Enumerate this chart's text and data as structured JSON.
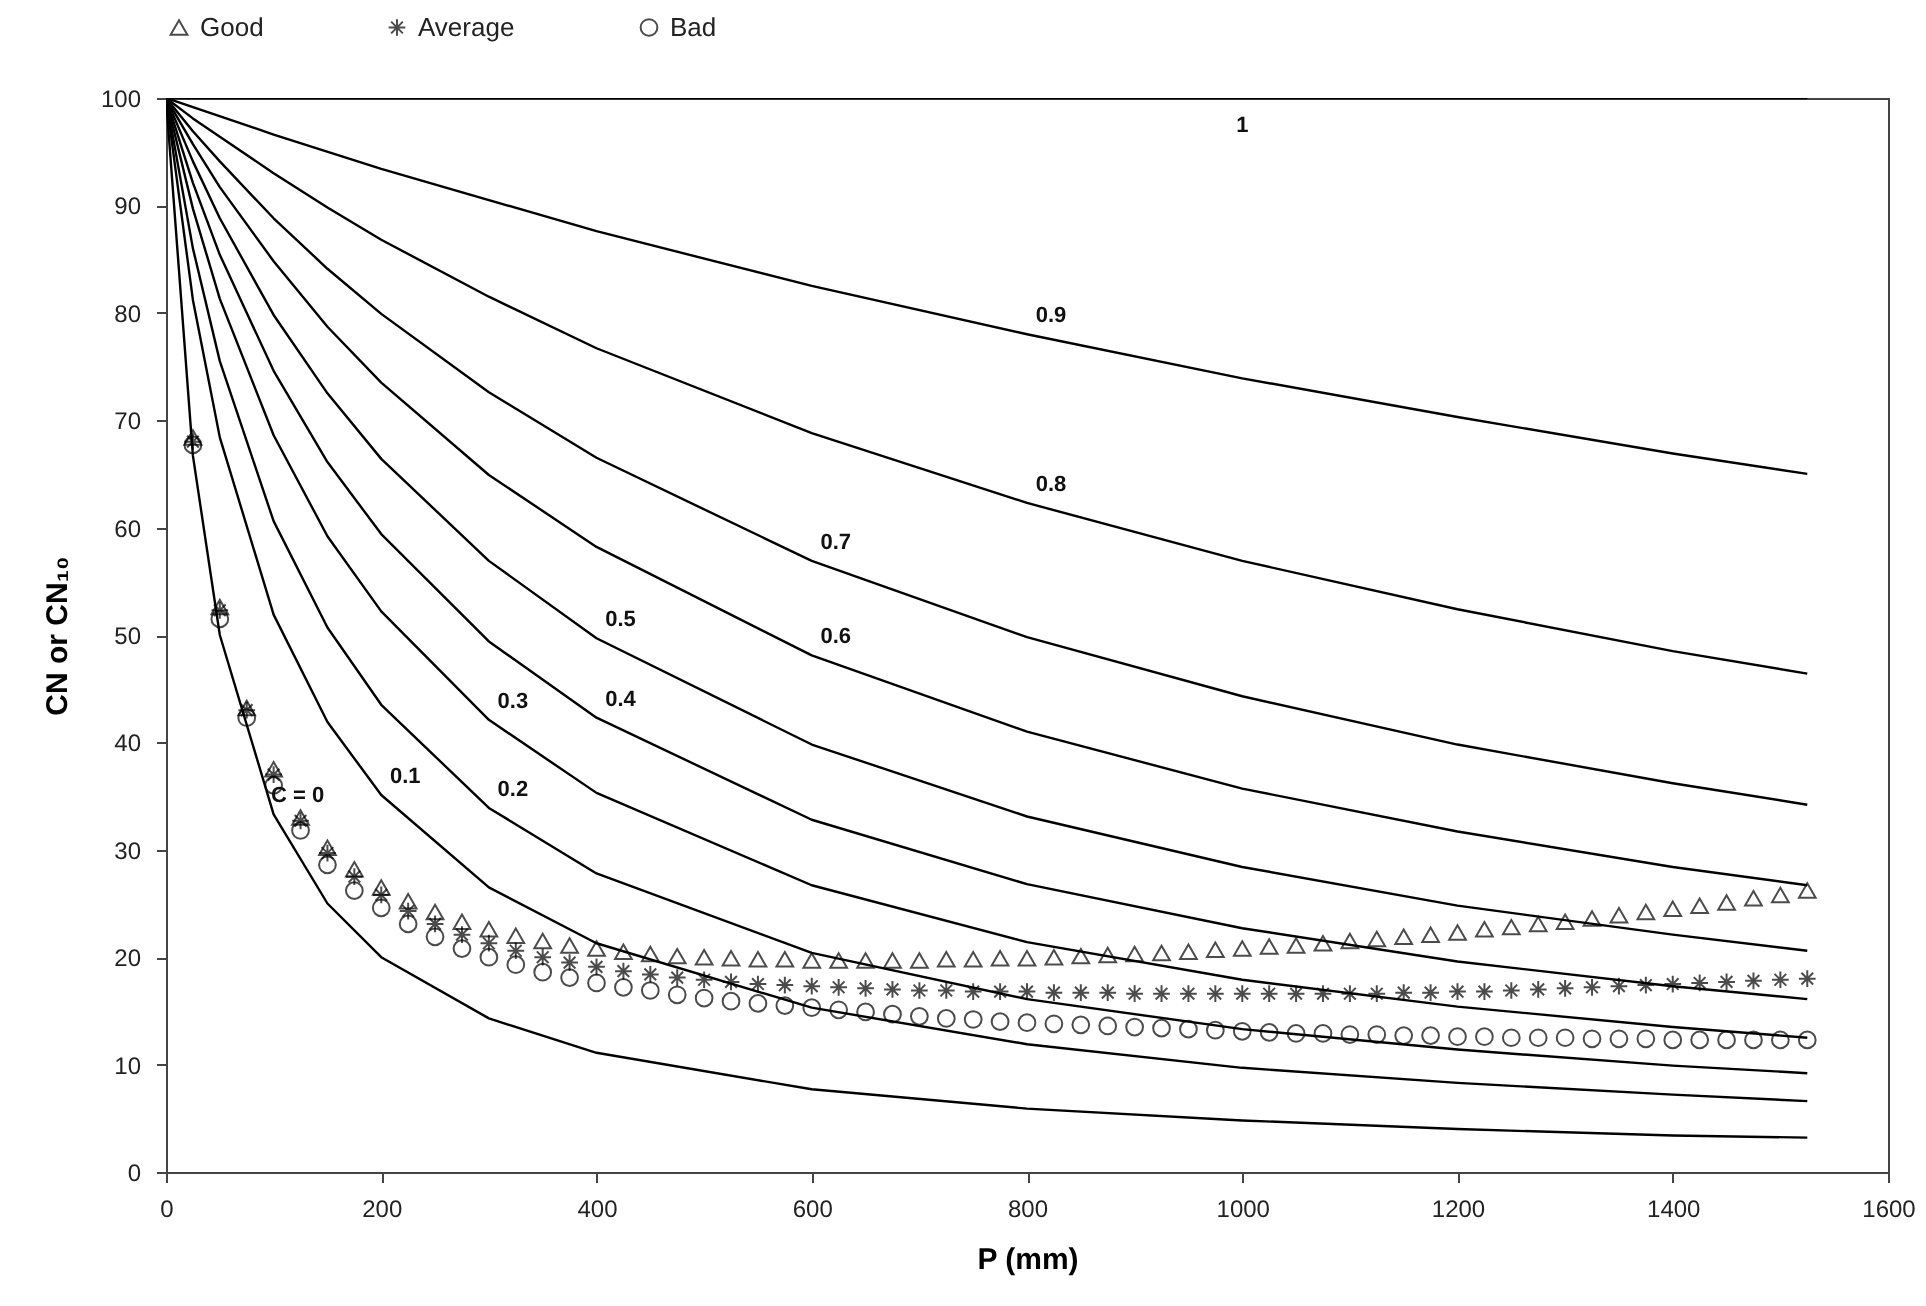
{
  "chart_data": {
    "type": "line",
    "xlabel": "P (mm)",
    "ylabel": "CN or CN₁₀",
    "xlim": [
      0,
      1600
    ],
    "xticks": [
      0,
      200,
      400,
      600,
      800,
      1000,
      1200,
      1400,
      1600
    ],
    "ylim": [
      0,
      100
    ],
    "yticks": [
      0,
      10,
      20,
      30,
      40,
      50,
      60,
      70,
      80,
      90,
      100
    ],
    "grid": false,
    "legend": "top",
    "series": [
      {
        "color": "#000000",
        "marker": "none",
        "x": [
          0,
          25,
          50,
          100,
          150,
          200,
          300,
          400,
          600,
          800,
          1000,
          1200,
          1400,
          1525
        ],
        "values": [
          100,
          66.7,
          50,
          33.3,
          25,
          20,
          14.3,
          11.1,
          7.7,
          5.9,
          4.8,
          4.0,
          3.4,
          3.2
        ]
      },
      {
        "type": "line",
        "color": "#000000",
        "marker": "none",
        "x": [
          0,
          25,
          50,
          100,
          150,
          200,
          300,
          400,
          600,
          800,
          1000,
          1200,
          1400,
          1525
        ],
        "values": [
          100,
          81.2,
          68.4,
          51.9,
          41.9,
          35.1,
          26.5,
          21.3,
          15.3,
          11.9,
          9.7,
          8.3,
          7.2,
          6.6
        ]
      },
      {
        "type": "line",
        "color": "#000000",
        "marker": "none",
        "x": [
          0,
          25,
          50,
          100,
          150,
          200,
          300,
          400,
          600,
          800,
          1000,
          1200,
          1400,
          1525
        ],
        "values": [
          100,
          86.0,
          75.5,
          60.6,
          50.7,
          43.5,
          33.9,
          27.8,
          20.4,
          16.1,
          13.3,
          11.4,
          9.9,
          9.2
        ]
      },
      {
        "type": "line",
        "color": "#000000",
        "marker": "none",
        "x": [
          0,
          25,
          50,
          100,
          150,
          200,
          300,
          400,
          600,
          800,
          1000,
          1200,
          1400,
          1525
        ],
        "values": [
          100,
          89.7,
          81.3,
          68.6,
          59.2,
          52.2,
          42.1,
          35.3,
          26.7,
          21.4,
          17.9,
          15.4,
          13.5,
          12.5
        ]
      },
      {
        "type": "line",
        "color": "#000000",
        "marker": "none",
        "x": [
          0,
          25,
          50,
          100,
          150,
          200,
          300,
          400,
          600,
          800,
          1000,
          1200,
          1400,
          1525
        ],
        "values": [
          100,
          92.1,
          85.4,
          74.6,
          66.1,
          59.4,
          49.4,
          42.3,
          32.8,
          26.8,
          22.7,
          19.6,
          17.3,
          16.1
        ]
      },
      {
        "type": "line",
        "color": "#000000",
        "marker": "none",
        "x": [
          0,
          25,
          50,
          100,
          150,
          200,
          300,
          400,
          600,
          800,
          1000,
          1200,
          1400,
          1525
        ],
        "values": [
          100,
          94.1,
          88.8,
          79.8,
          72.5,
          66.4,
          56.9,
          49.7,
          39.8,
          33.1,
          28.4,
          24.8,
          22.1,
          20.6
        ]
      },
      {
        "type": "line",
        "color": "#000000",
        "marker": "none",
        "x": [
          0,
          25,
          50,
          100,
          150,
          200,
          300,
          400,
          600,
          800,
          1000,
          1200,
          1400,
          1525
        ],
        "values": [
          100,
          95.7,
          91.7,
          84.8,
          78.7,
          73.5,
          64.9,
          58.2,
          48.1,
          41.0,
          35.7,
          31.7,
          28.4,
          26.7
        ]
      },
      {
        "type": "line",
        "color": "#000000",
        "marker": "none",
        "x": [
          0,
          25,
          50,
          100,
          150,
          200,
          300,
          400,
          600,
          800,
          1000,
          1200,
          1400,
          1525
        ],
        "values": [
          100,
          96.9,
          94.1,
          88.8,
          84.1,
          79.9,
          72.6,
          66.5,
          56.9,
          49.8,
          44.3,
          39.8,
          36.2,
          34.2
        ]
      },
      {
        "type": "line",
        "color": "#000000",
        "marker": "none",
        "x": [
          0,
          25,
          50,
          100,
          150,
          200,
          300,
          400,
          600,
          800,
          1000,
          1200,
          1400,
          1525
        ],
        "values": [
          100,
          98.1,
          96.4,
          93.0,
          89.8,
          86.8,
          81.5,
          76.7,
          68.8,
          62.3,
          56.9,
          52.4,
          48.5,
          46.4
        ]
      },
      {
        "type": "line",
        "color": "#000000",
        "marker": "none",
        "x": [
          0,
          100,
          200,
          400,
          600,
          800,
          1000,
          1200,
          1400,
          1525
        ],
        "values": [
          100,
          96.6,
          93.4,
          87.6,
          82.5,
          78.0,
          73.9,
          70.3,
          66.9,
          65.0
        ]
      },
      {
        "type": "line",
        "color": "#000000",
        "marker": "none",
        "x": [
          0,
          1525
        ],
        "values": [
          100,
          100
        ]
      },
      {
        "type": "scatter",
        "name": "Good",
        "color": "#000000",
        "marker": "triangle",
        "x": [
          25,
          50,
          75,
          100,
          125,
          150,
          175,
          200,
          225,
          250,
          275,
          300,
          325,
          350,
          375,
          400,
          425,
          450,
          475,
          500,
          525,
          550,
          575,
          600,
          625,
          650,
          675,
          700,
          725,
          750,
          775,
          800,
          825,
          850,
          875,
          900,
          925,
          950,
          975,
          1000,
          1025,
          1050,
          1075,
          1100,
          1125,
          1150,
          1175,
          1200,
          1225,
          1250,
          1275,
          1300,
          1325,
          1350,
          1375,
          1400,
          1425,
          1450,
          1475,
          1500,
          1525
        ],
        "values": [
          68.4,
          52.6,
          43.2,
          37.5,
          33,
          30.2,
          28.2,
          26.5,
          25.2,
          24.2,
          23.3,
          22.6,
          22,
          21.5,
          21.1,
          20.8,
          20.5,
          20.3,
          20.1,
          20,
          19.9,
          19.8,
          19.8,
          19.7,
          19.7,
          19.7,
          19.7,
          19.7,
          19.8,
          19.8,
          19.9,
          19.9,
          20,
          20.1,
          20.2,
          20.3,
          20.4,
          20.5,
          20.7,
          20.8,
          21,
          21.1,
          21.3,
          21.5,
          21.7,
          21.9,
          22.1,
          22.3,
          22.6,
          22.8,
          23.1,
          23.3,
          23.6,
          23.9,
          24.2,
          24.5,
          24.8,
          25.1,
          25.5,
          25.8,
          26.2
        ]
      },
      {
        "type": "scatter",
        "name": "Average",
        "color": "#000000",
        "marker": "cross",
        "x": [
          25,
          50,
          75,
          100,
          125,
          150,
          175,
          200,
          225,
          250,
          275,
          300,
          325,
          350,
          375,
          400,
          425,
          450,
          475,
          500,
          525,
          550,
          575,
          600,
          625,
          650,
          675,
          700,
          725,
          750,
          775,
          800,
          825,
          850,
          875,
          900,
          925,
          950,
          975,
          1000,
          1025,
          1050,
          1075,
          1100,
          1125,
          1150,
          1175,
          1200,
          1225,
          1250,
          1275,
          1300,
          1325,
          1350,
          1375,
          1400,
          1425,
          1450,
          1475,
          1500,
          1525
        ],
        "values": [
          68,
          52.3,
          43,
          37,
          32.7,
          29.7,
          27.5,
          25.8,
          24.3,
          23.1,
          22.1,
          21.3,
          20.6,
          20,
          19.5,
          19.1,
          18.7,
          18.4,
          18.1,
          17.9,
          17.7,
          17.5,
          17.4,
          17.3,
          17.2,
          17.1,
          17,
          16.9,
          16.9,
          16.8,
          16.8,
          16.8,
          16.7,
          16.7,
          16.7,
          16.6,
          16.6,
          16.6,
          16.6,
          16.6,
          16.6,
          16.6,
          16.6,
          16.6,
          16.6,
          16.7,
          16.7,
          16.8,
          16.8,
          16.9,
          17,
          17.1,
          17.2,
          17.3,
          17.4,
          17.5,
          17.6,
          17.7,
          17.8,
          17.9,
          18
        ]
      },
      {
        "type": "scatter",
        "name": "Bad",
        "color": "#000000",
        "marker": "circle",
        "x": [
          25,
          50,
          75,
          100,
          125,
          150,
          175,
          200,
          225,
          250,
          275,
          300,
          325,
          350,
          375,
          400,
          425,
          450,
          475,
          500,
          525,
          550,
          575,
          600,
          625,
          650,
          675,
          700,
          725,
          750,
          775,
          800,
          825,
          850,
          875,
          900,
          925,
          950,
          975,
          1000,
          1025,
          1050,
          1075,
          1100,
          1125,
          1150,
          1175,
          1200,
          1225,
          1250,
          1275,
          1300,
          1325,
          1350,
          1375,
          1400,
          1425,
          1450,
          1475,
          1500,
          1525
        ],
        "values": [
          67.7,
          51.5,
          42.3,
          36,
          31.8,
          28.6,
          26.2,
          24.6,
          23.1,
          21.9,
          20.8,
          20,
          19.3,
          18.6,
          18.1,
          17.6,
          17.2,
          16.9,
          16.5,
          16.2,
          15.9,
          15.7,
          15.5,
          15.3,
          15.1,
          14.9,
          14.7,
          14.5,
          14.3,
          14.2,
          14,
          13.9,
          13.8,
          13.7,
          13.6,
          13.5,
          13.4,
          13.3,
          13.2,
          13.1,
          13,
          12.9,
          12.9,
          12.8,
          12.8,
          12.7,
          12.7,
          12.6,
          12.6,
          12.5,
          12.5,
          12.5,
          12.4,
          12.4,
          12.4,
          12.3,
          12.3,
          12.3,
          12.3,
          12.3,
          12.3
        ]
      }
    ],
    "annotations": [
      {
        "text": "1",
        "x": 1000,
        "y": 100
      },
      {
        "text": "0.9",
        "x": 800,
        "y": 78.0
      },
      {
        "text": "0.8",
        "x": 800,
        "y": 62.3
      },
      {
        "text": "0.7",
        "x": 600,
        "y": 56.9
      },
      {
        "text": "0.6",
        "x": 600,
        "y": 48.1
      },
      {
        "text": "0.5",
        "x": 400,
        "y": 49.7
      },
      {
        "text": "0.4",
        "x": 400,
        "y": 42.3
      },
      {
        "text": "0.3",
        "x": 300,
        "y": 42.1
      },
      {
        "text": "0.2",
        "x": 300,
        "y": 33.9
      },
      {
        "text": "0.1",
        "x": 200,
        "y": 35.1
      },
      {
        "text": "C = 0",
        "x": 100,
        "y": 33.3
      }
    ]
  }
}
